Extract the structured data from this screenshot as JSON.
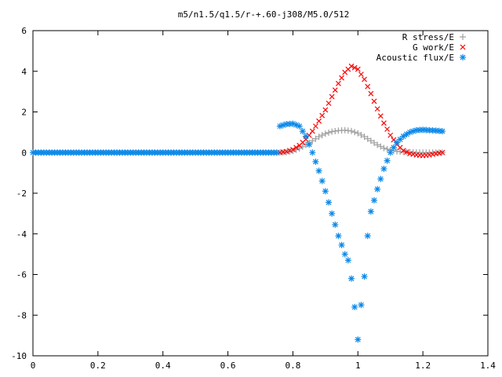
{
  "chart_data": {
    "type": "scatter",
    "title": "m5/n1.5/q1.5/r-+.60-j308/M5.0/512",
    "xlabel": "",
    "ylabel": "",
    "xlim": [
      0,
      1.4
    ],
    "ylim": [
      -10,
      6
    ],
    "x_ticks": [
      "0",
      "0.2",
      "0.4",
      "0.6",
      "0.8",
      "1",
      "1.2",
      "1.4"
    ],
    "y_ticks": [
      "-10",
      "-8",
      "-6",
      "-4",
      "-2",
      "0",
      "2",
      "4",
      "6"
    ],
    "grid": false,
    "legend_position": "top-right",
    "series": [
      {
        "name": "R stress/E",
        "marker": "plus",
        "color": "#a0a0a0",
        "points": [
          [
            0.76,
            0.0
          ],
          [
            0.78,
            0.02
          ],
          [
            0.8,
            0.08
          ],
          [
            0.82,
            0.2
          ],
          [
            0.84,
            0.38
          ],
          [
            0.86,
            0.58
          ],
          [
            0.88,
            0.78
          ],
          [
            0.9,
            0.93
          ],
          [
            0.92,
            1.03
          ],
          [
            0.94,
            1.08
          ],
          [
            0.96,
            1.1
          ],
          [
            0.98,
            1.06
          ],
          [
            1.0,
            0.95
          ],
          [
            1.02,
            0.78
          ],
          [
            1.04,
            0.58
          ],
          [
            1.06,
            0.38
          ],
          [
            1.08,
            0.22
          ],
          [
            1.1,
            0.12
          ],
          [
            1.12,
            0.06
          ],
          [
            1.14,
            0.03
          ],
          [
            1.16,
            0.02
          ],
          [
            1.18,
            0.01
          ],
          [
            1.2,
            0.0
          ],
          [
            1.22,
            0.0
          ],
          [
            1.24,
            0.0
          ],
          [
            1.26,
            0.0
          ]
        ]
      },
      {
        "name": "G work/E",
        "marker": "cross",
        "color": "#ff0000",
        "points": [
          [
            0.76,
            0.0
          ],
          [
            0.78,
            0.05
          ],
          [
            0.8,
            0.15
          ],
          [
            0.82,
            0.35
          ],
          [
            0.84,
            0.65
          ],
          [
            0.86,
            1.05
          ],
          [
            0.88,
            1.55
          ],
          [
            0.9,
            2.1
          ],
          [
            0.92,
            2.75
          ],
          [
            0.94,
            3.4
          ],
          [
            0.96,
            3.95
          ],
          [
            0.98,
            4.25
          ],
          [
            1.0,
            4.1
          ],
          [
            1.02,
            3.6
          ],
          [
            1.04,
            2.9
          ],
          [
            1.06,
            2.15
          ],
          [
            1.08,
            1.45
          ],
          [
            1.1,
            0.85
          ],
          [
            1.12,
            0.4
          ],
          [
            1.14,
            0.1
          ],
          [
            1.16,
            -0.05
          ],
          [
            1.18,
            -0.12
          ],
          [
            1.2,
            -0.15
          ],
          [
            1.22,
            -0.12
          ],
          [
            1.24,
            -0.05
          ],
          [
            1.26,
            0.0
          ]
        ]
      },
      {
        "name": "Acoustic flux/E",
        "marker": "star",
        "color": "#0a88e8",
        "points": [
          [
            0.0,
            0.0
          ],
          [
            0.05,
            0.0
          ],
          [
            0.1,
            0.0
          ],
          [
            0.15,
            0.0
          ],
          [
            0.2,
            0.0
          ],
          [
            0.25,
            0.0
          ],
          [
            0.3,
            0.0
          ],
          [
            0.35,
            0.0
          ],
          [
            0.4,
            0.0
          ],
          [
            0.45,
            0.0
          ],
          [
            0.5,
            0.0
          ],
          [
            0.55,
            0.0
          ],
          [
            0.6,
            0.0
          ],
          [
            0.65,
            0.0
          ],
          [
            0.7,
            0.0
          ],
          [
            0.75,
            0.0
          ],
          [
            0.76,
            1.3
          ],
          [
            0.78,
            1.4
          ],
          [
            0.8,
            1.42
          ],
          [
            0.82,
            1.3
          ],
          [
            0.84,
            0.8
          ],
          [
            0.86,
            0.0
          ],
          [
            0.88,
            -0.9
          ],
          [
            0.9,
            -1.9
          ],
          [
            0.92,
            -3.0
          ],
          [
            0.94,
            -4.1
          ],
          [
            0.96,
            -5.0
          ],
          [
            0.97,
            -5.3
          ],
          [
            0.98,
            -6.2
          ],
          [
            0.99,
            -7.6
          ],
          [
            1.0,
            -9.2
          ],
          [
            1.01,
            -7.5
          ],
          [
            1.02,
            -6.1
          ],
          [
            1.03,
            -4.1
          ],
          [
            1.04,
            -2.9
          ],
          [
            1.06,
            -1.8
          ],
          [
            1.08,
            -0.8
          ],
          [
            1.1,
            0.0
          ],
          [
            1.12,
            0.5
          ],
          [
            1.14,
            0.8
          ],
          [
            1.16,
            1.0
          ],
          [
            1.18,
            1.1
          ],
          [
            1.2,
            1.12
          ],
          [
            1.22,
            1.1
          ],
          [
            1.24,
            1.08
          ],
          [
            1.26,
            1.05
          ]
        ]
      }
    ]
  }
}
